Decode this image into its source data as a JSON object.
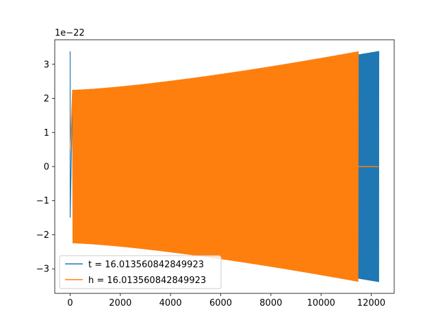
{
  "chart_data": {
    "type": "line",
    "title": "",
    "xlabel": "",
    "ylabel": "",
    "offset_text": "1e−22",
    "scale": 1e-22,
    "xlim": [
      -614,
      12914
    ],
    "ylim": [
      -3.72,
      3.72
    ],
    "x_ticks": [
      0,
      2000,
      4000,
      6000,
      8000,
      10000,
      12000
    ],
    "x_tick_labels": [
      "0",
      "2000",
      "4000",
      "6000",
      "8000",
      "10000",
      "12000"
    ],
    "y_ticks": [
      -3,
      -2,
      -1,
      0,
      1,
      2,
      3
    ],
    "y_tick_labels": [
      "−3",
      "−2",
      "−1",
      "0",
      "1",
      "2",
      "3"
    ],
    "grid": false,
    "legend": "lower-left",
    "series": [
      {
        "name": "t = 16.013560842849923",
        "color": "#1f77b4",
        "x_start": 0,
        "x_end": 12300,
        "initial_spike": 3.38,
        "envelope_x": [
          100,
          12300
        ],
        "envelope": [
          2.25,
          3.38
        ],
        "tail_x": [
          11480,
          12300
        ]
      },
      {
        "name": "h = 16.013560842849923",
        "color": "#ff7f0e",
        "x_start": 0,
        "x_end": 11480,
        "envelope_x": [
          100,
          11480
        ],
        "envelope": [
          2.25,
          3.38
        ],
        "flat_x": [
          11480,
          12300
        ],
        "flat_value": 0
      }
    ]
  }
}
